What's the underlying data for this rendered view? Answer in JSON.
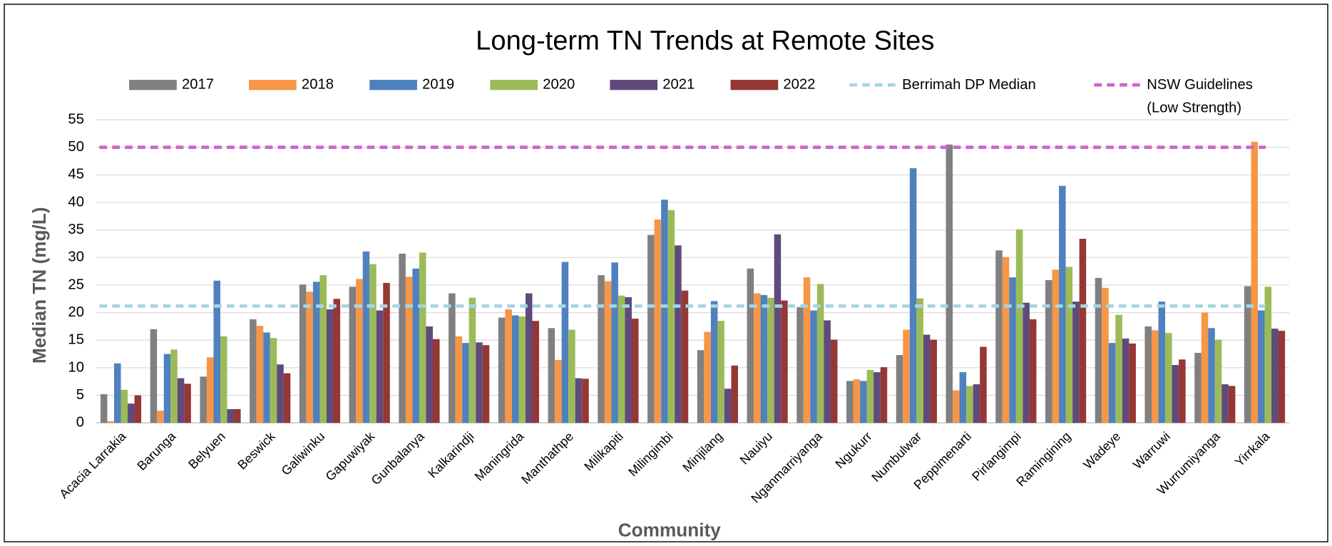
{
  "chart_data": {
    "type": "bar",
    "title": "Long-term TN Trends at Remote Sites",
    "x_label": "Community",
    "y_label": "Median TN (mg/L)",
    "categories": [
      "Acacia Larrakia",
      "Barunga",
      "Belyuen",
      "Beswick",
      "Galiwinku",
      "Gapuwiyak",
      "Gunbalanya",
      "Kalkarindji",
      "Maningrida",
      "Manthathpe",
      "Milikapiti",
      "Milingimbi",
      "Minjilang",
      "Nauiyu",
      "Nganmarriyanga",
      "Ngukurr",
      "Numbulwar",
      "Peppimenarti",
      "Pirlangimpi",
      "Ramingining",
      "Wadeye",
      "Warruwi",
      "Wurrumiyanga",
      "Yirrkala"
    ],
    "series": [
      {
        "name": "2017",
        "color": "#808080",
        "values": [
          5.2,
          17.0,
          8.4,
          18.8,
          25.1,
          24.7,
          30.7,
          23.5,
          19.1,
          17.2,
          26.8,
          34.1,
          13.2,
          28.0,
          21.0,
          7.6,
          12.3,
          50.5,
          31.3,
          25.9,
          26.3,
          17.5,
          12.7,
          24.8
        ]
      },
      {
        "name": "2018",
        "color": "#f79646",
        "values": [
          0.3,
          2.2,
          11.9,
          17.6,
          23.8,
          26.1,
          26.5,
          15.7,
          20.6,
          11.4,
          25.7,
          36.9,
          16.5,
          23.5,
          26.4,
          7.9,
          16.9,
          5.9,
          30.1,
          27.8,
          24.5,
          16.8,
          20.0,
          51.0
        ]
      },
      {
        "name": "2019",
        "color": "#4f81bd",
        "values": [
          10.8,
          12.5,
          25.8,
          16.4,
          25.6,
          31.1,
          28.0,
          14.5,
          19.5,
          29.2,
          29.1,
          40.5,
          22.1,
          23.2,
          20.4,
          7.6,
          46.2,
          9.2,
          26.4,
          43.0,
          14.5,
          22.0,
          17.2,
          20.4
        ]
      },
      {
        "name": "2020",
        "color": "#9bbb59",
        "values": [
          6.0,
          13.3,
          15.7,
          15.4,
          26.8,
          28.8,
          30.9,
          22.7,
          19.3,
          16.9,
          23.1,
          38.6,
          18.5,
          22.7,
          25.2,
          9.6,
          22.6,
          6.7,
          35.1,
          28.3,
          19.6,
          16.3,
          15.1,
          24.7
        ]
      },
      {
        "name": "2021",
        "color": "#604a7b",
        "values": [
          3.5,
          8.1,
          2.5,
          10.6,
          20.6,
          20.4,
          17.5,
          14.6,
          23.5,
          8.1,
          22.8,
          32.2,
          6.2,
          34.2,
          18.6,
          9.2,
          16.0,
          7.0,
          21.8,
          22.0,
          15.3,
          10.5,
          7.0,
          17.1
        ]
      },
      {
        "name": "2022",
        "color": "#953735",
        "values": [
          5.0,
          7.1,
          2.5,
          9.0,
          22.5,
          25.4,
          15.2,
          14.1,
          18.5,
          8.0,
          18.9,
          24.0,
          10.4,
          22.2,
          15.1,
          10.1,
          15.1,
          13.8,
          18.8,
          33.4,
          14.4,
          11.5,
          6.7,
          16.7
        ]
      }
    ],
    "reference_lines": [
      {
        "name": "Berrimah DP Median",
        "value": 21.2,
        "color": "#a5d5e3"
      },
      {
        "name": "NSW Guidelines (Low Strength)",
        "value": 50,
        "color": "#cc66cc"
      }
    ],
    "ylim": [
      0,
      55
    ],
    "yticks": [
      0,
      5,
      10,
      15,
      20,
      25,
      30,
      35,
      40,
      45,
      50,
      55
    ],
    "grid": true
  }
}
